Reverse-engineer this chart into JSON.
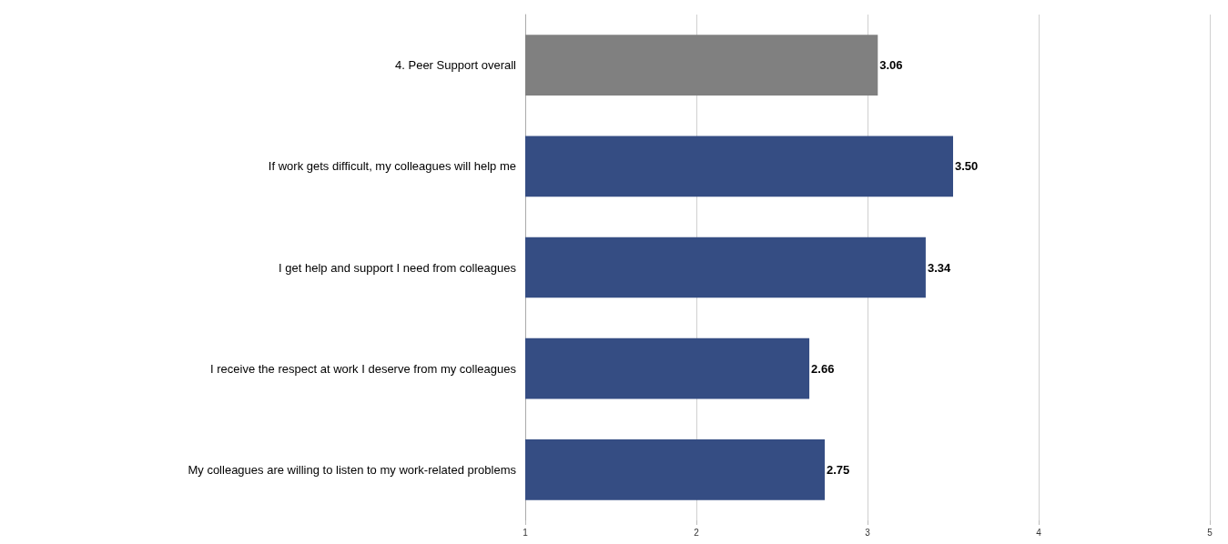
{
  "chart_data": {
    "type": "bar",
    "orientation": "horizontal",
    "categories": [
      "4. Peer Support overall",
      "If work gets difficult, my colleagues will help me",
      "I get help and support I need from colleagues",
      "I receive the respect at work I deserve from my colleagues",
      "My colleagues are willing to listen to my work-related problems"
    ],
    "values": [
      3.06,
      3.5,
      3.34,
      2.66,
      2.75
    ],
    "value_labels": [
      "3.06",
      "3.50",
      "3.34",
      "2.66",
      "2.75"
    ],
    "colors": [
      "#808080",
      "#354d83",
      "#354d83",
      "#354d83",
      "#354d83"
    ],
    "xlim": [
      1,
      5
    ],
    "xticks": [
      1,
      2,
      3,
      4,
      5
    ],
    "grid": "x"
  }
}
